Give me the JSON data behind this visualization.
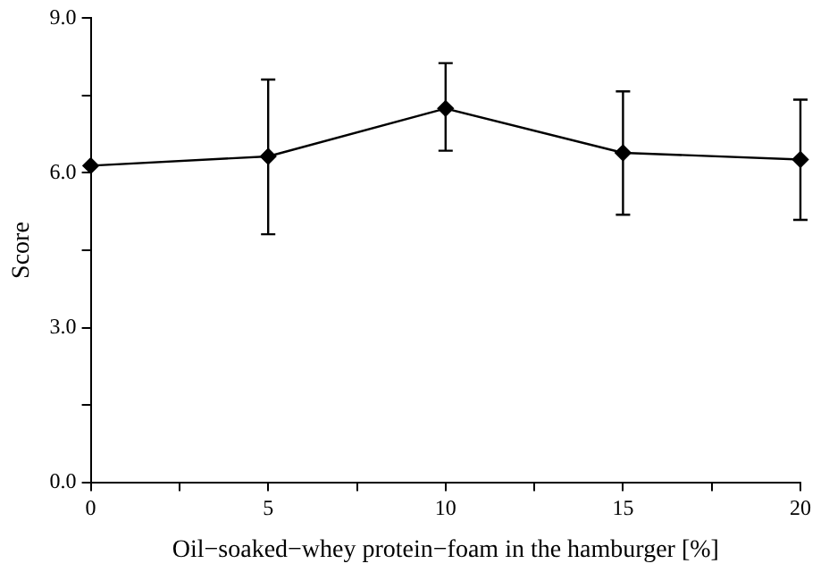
{
  "chart_data": {
    "type": "line",
    "xlabel": "Oil−soaked−whey protein−foam in the hamburger [%]",
    "ylabel": "Score",
    "x": [
      0,
      5,
      10,
      15,
      20
    ],
    "series": [
      {
        "color": "#000000",
        "values": [
          6.14,
          6.32,
          7.25,
          6.39,
          6.26
        ],
        "errors": [
          null,
          [
            4.81,
            7.81
          ],
          [
            6.43,
            8.13
          ],
          [
            5.19,
            7.58
          ],
          [
            5.09,
            7.42
          ]
        ]
      }
    ],
    "xlim": [
      0,
      20
    ],
    "xticks": [
      0,
      {
        "value": 2.5,
        "label": null
      },
      5,
      {
        "value": 7.5,
        "label": null
      },
      10,
      {
        "value": 12.5,
        "label": null
      },
      15,
      {
        "value": 17.5,
        "label": null
      },
      20
    ],
    "ylim": [
      0,
      9
    ],
    "yticks": [
      {
        "value": 0,
        "label": "0.0"
      },
      {
        "value": 1.5,
        "label": null
      },
      {
        "value": 3,
        "label": "3.0"
      },
      {
        "value": 4.5,
        "label": null
      },
      {
        "value": 6,
        "label": "6.0"
      },
      {
        "value": 7.5,
        "label": null
      },
      {
        "value": 9,
        "label": "9.0"
      }
    ],
    "grid": false,
    "legend": false,
    "marker": "diamond",
    "line_style": "solid"
  }
}
